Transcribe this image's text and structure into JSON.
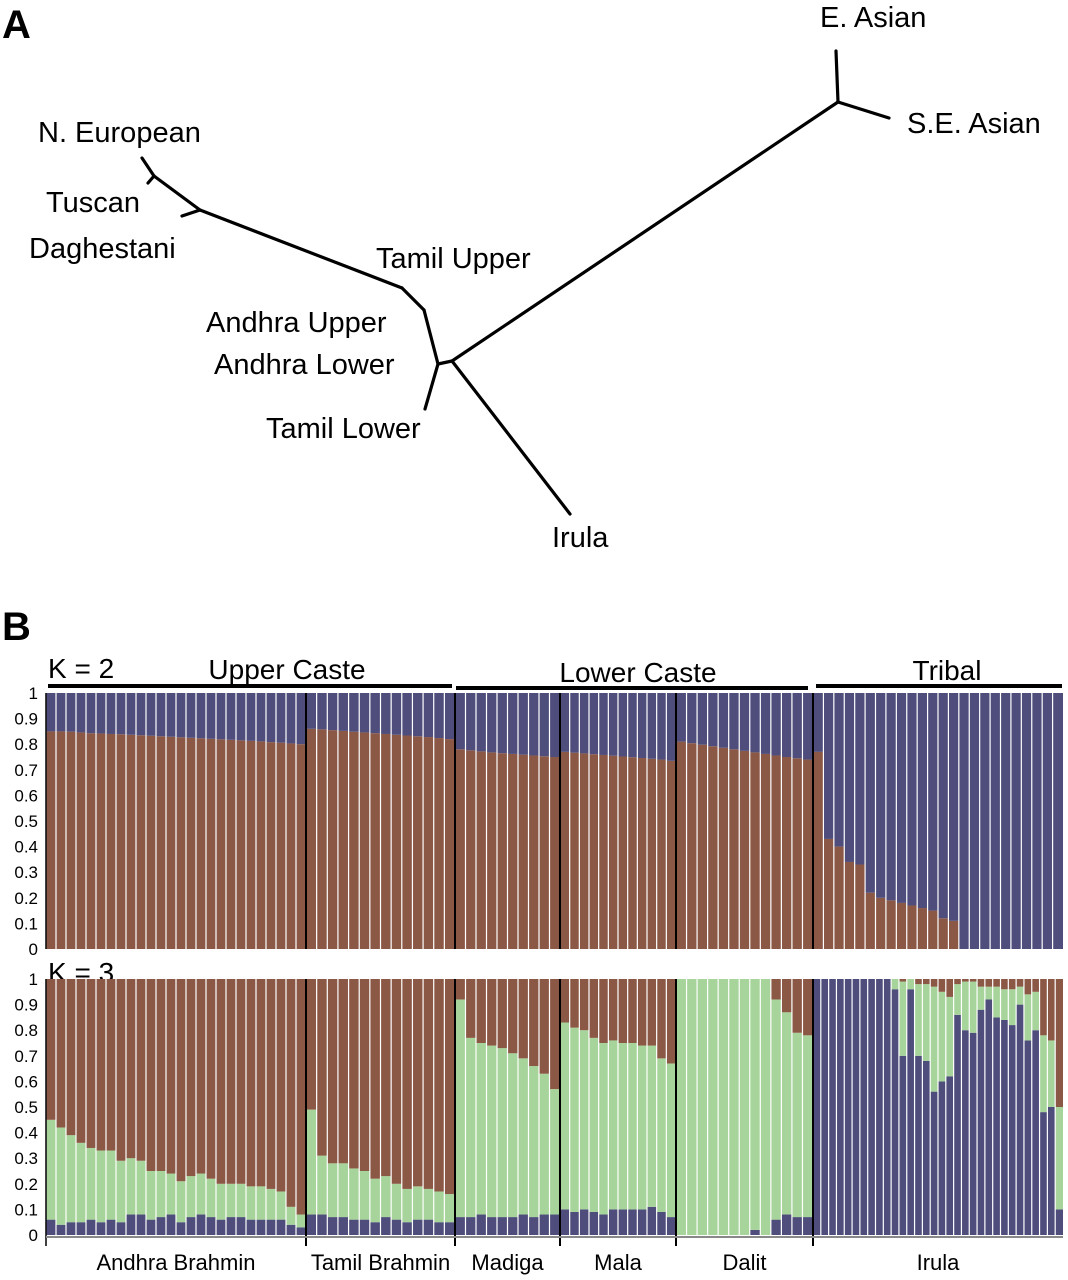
{
  "panel_a": {
    "letter": "A"
  },
  "panel_b": {
    "letter": "B"
  },
  "colors": {
    "blue": "#4e4d7c",
    "brown": "#8c5846",
    "green": "#a6d49a"
  },
  "chart_data": [
    {
      "type": "tree",
      "taxa": [
        "E. Asian",
        "S.E. Asian",
        "N. European",
        "Tuscan",
        "Daghestani",
        "Tamil Upper",
        "Andhra Upper",
        "Andhra Lower",
        "Tamil Lower",
        "Irula"
      ]
    },
    {
      "type": "bar",
      "stacked": true,
      "k_label": "K = 2",
      "ylim": [
        0,
        1
      ],
      "yticks": [
        "0",
        "0.1",
        "0.2",
        "0.3",
        "0.4",
        "0.5",
        "0.6",
        "0.7",
        "0.8",
        "0.9",
        "1"
      ],
      "groups": [
        {
          "label": "Upper Caste"
        },
        {
          "label": "Lower Caste"
        },
        {
          "label": "Tribal"
        }
      ],
      "populations": [
        {
          "name": "Andhra Brahmin",
          "brown": [
            0.85,
            0.85,
            0.849,
            0.846,
            0.843,
            0.842,
            0.84,
            0.839,
            0.837,
            0.835,
            0.833,
            0.831,
            0.829,
            0.827,
            0.825,
            0.823,
            0.821,
            0.819,
            0.817,
            0.815,
            0.813,
            0.811,
            0.808,
            0.806,
            0.803,
            0.8
          ]
        },
        {
          "name": "Tamil Brahmin",
          "brown": [
            0.86,
            0.858,
            0.855,
            0.852,
            0.849,
            0.846,
            0.843,
            0.84,
            0.837,
            0.834,
            0.831,
            0.828,
            0.824,
            0.82
          ]
        },
        {
          "name": "Madiga",
          "brown": [
            0.78,
            0.776,
            0.772,
            0.768,
            0.765,
            0.762,
            0.759,
            0.756,
            0.753,
            0.75
          ]
        },
        {
          "name": "Mala",
          "brown": [
            0.77,
            0.767,
            0.764,
            0.761,
            0.758,
            0.755,
            0.752,
            0.749,
            0.746,
            0.743,
            0.74,
            0.735
          ]
        },
        {
          "name": "Dalit",
          "brown": [
            0.81,
            0.804,
            0.798,
            0.792,
            0.786,
            0.78,
            0.774,
            0.768,
            0.762,
            0.756,
            0.75,
            0.745,
            0.74
          ]
        },
        {
          "name": "Irula",
          "brown": [
            0.77,
            0.43,
            0.4,
            0.34,
            0.33,
            0.22,
            0.2,
            0.19,
            0.18,
            0.17,
            0.16,
            0.15,
            0.12,
            0.11,
            0,
            0,
            0,
            0,
            0,
            0,
            0,
            0,
            0,
            0
          ]
        }
      ]
    },
    {
      "type": "bar",
      "stacked": true,
      "k_label": "K = 3",
      "ylim": [
        0,
        1
      ],
      "yticks": [
        "0",
        "0.1",
        "0.2",
        "0.3",
        "0.4",
        "0.5",
        "0.6",
        "0.7",
        "0.8",
        "0.9",
        "1"
      ],
      "populations": [
        {
          "name": "Andhra Brahmin",
          "blue": [
            0.06,
            0.04,
            0.05,
            0.05,
            0.06,
            0.05,
            0.06,
            0.05,
            0.08,
            0.08,
            0.06,
            0.07,
            0.08,
            0.05,
            0.07,
            0.08,
            0.07,
            0.06,
            0.07,
            0.07,
            0.06,
            0.06,
            0.06,
            0.06,
            0.04,
            0.03
          ],
          "green": [
            0.39,
            0.38,
            0.34,
            0.31,
            0.28,
            0.28,
            0.27,
            0.24,
            0.22,
            0.21,
            0.19,
            0.18,
            0.16,
            0.16,
            0.16,
            0.16,
            0.15,
            0.14,
            0.13,
            0.13,
            0.13,
            0.13,
            0.12,
            0.11,
            0.07,
            0.05
          ]
        },
        {
          "name": "Tamil Brahmin",
          "blue": [
            0.08,
            0.08,
            0.07,
            0.07,
            0.06,
            0.06,
            0.05,
            0.07,
            0.06,
            0.05,
            0.06,
            0.06,
            0.05,
            0.05
          ],
          "green": [
            0.41,
            0.23,
            0.21,
            0.21,
            0.2,
            0.19,
            0.17,
            0.16,
            0.14,
            0.13,
            0.13,
            0.12,
            0.12,
            0.11
          ]
        },
        {
          "name": "Madiga",
          "blue": [
            0.07,
            0.07,
            0.08,
            0.07,
            0.07,
            0.07,
            0.08,
            0.07,
            0.08,
            0.08
          ],
          "green": [
            0.85,
            0.7,
            0.67,
            0.67,
            0.66,
            0.64,
            0.61,
            0.59,
            0.55,
            0.49
          ]
        },
        {
          "name": "Mala",
          "blue": [
            0.1,
            0.09,
            0.1,
            0.09,
            0.08,
            0.1,
            0.1,
            0.1,
            0.1,
            0.11,
            0.09,
            0.07
          ],
          "green": [
            0.73,
            0.72,
            0.7,
            0.68,
            0.67,
            0.66,
            0.65,
            0.65,
            0.64,
            0.63,
            0.6,
            0.6
          ]
        },
        {
          "name": "Dalit",
          "blue": [
            0,
            0,
            0,
            0,
            0,
            0,
            0,
            0.02,
            0,
            0.06,
            0.08,
            0.07,
            0.07
          ],
          "green": [
            1,
            1,
            1,
            1,
            1,
            1,
            1,
            1,
            1,
            0.86,
            0.79,
            0.72,
            0.71
          ]
        },
        {
          "name": "Irula",
          "blue": [
            1,
            1,
            1,
            1,
            1,
            1,
            1,
            1,
            1,
            1,
            0.96,
            0.7,
            0.96,
            0.7,
            0.68,
            0.56,
            0.6,
            0.62,
            0.86,
            0.8,
            0.79,
            0.88,
            0.92,
            0.85,
            0.84,
            0.82,
            0.9,
            0.76,
            0.8,
            0.48,
            0.5,
            0.1
          ],
          "green": [
            0,
            0,
            0,
            0,
            0,
            0,
            0,
            0,
            0,
            0,
            0.04,
            0.29,
            0.04,
            0.28,
            0.3,
            0.41,
            0.35,
            0.31,
            0.12,
            0.19,
            0.2,
            0.09,
            0.05,
            0.12,
            0.12,
            0.14,
            0.07,
            0.18,
            0.15,
            0.3,
            0.26,
            0.4
          ]
        }
      ]
    }
  ]
}
